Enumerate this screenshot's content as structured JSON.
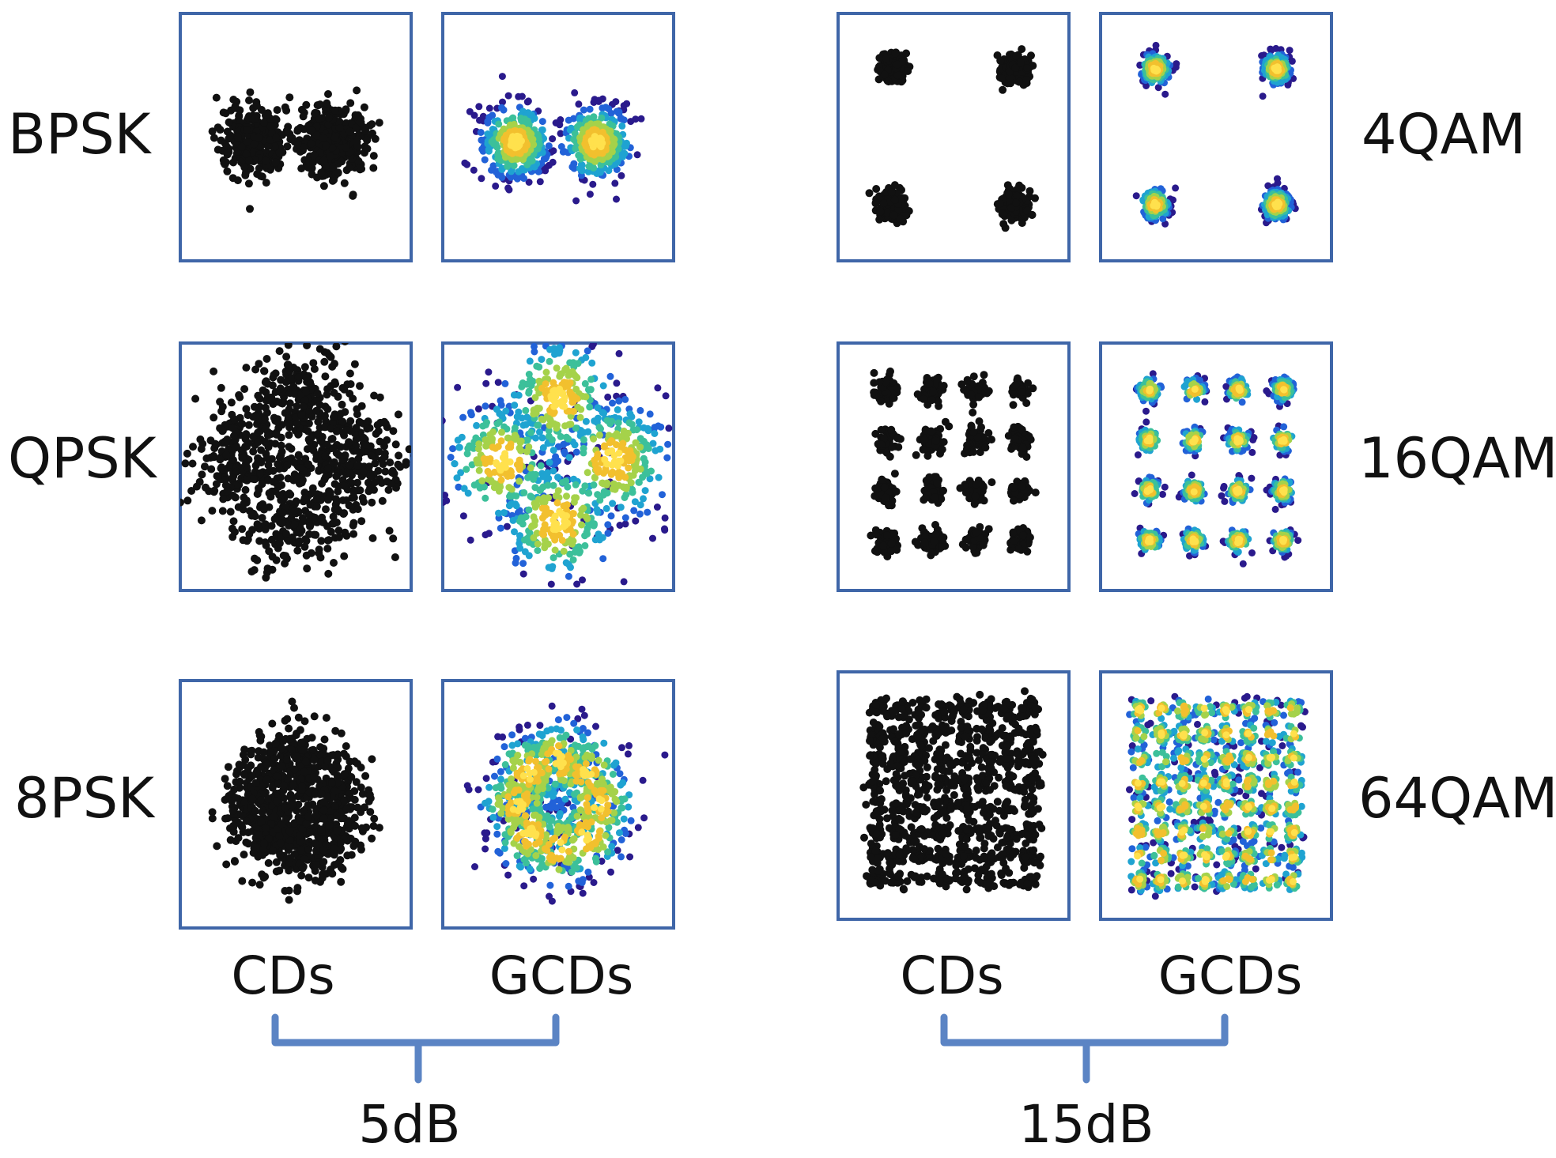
{
  "colors": {
    "frame": "#3f66a8",
    "brace": "#5b84c4",
    "cd_point": "#111111",
    "gcd_colormap": [
      "#2a1a8c",
      "#2262d8",
      "#1fa3d1",
      "#3cc09a",
      "#a5d24a",
      "#f2c02e",
      "#ffe14d"
    ]
  },
  "groups": [
    {
      "snr_label": "5dB",
      "column_labels": [
        "CDs",
        "GCDs"
      ],
      "rows": [
        {
          "modulation": "BPSK",
          "constellation": "bpsk"
        },
        {
          "modulation": "QPSK",
          "constellation": "qpsk"
        },
        {
          "modulation": "8PSK",
          "constellation": "8psk"
        }
      ]
    },
    {
      "snr_label": "15dB",
      "column_labels": [
        "CDs",
        "GCDs"
      ],
      "rows": [
        {
          "modulation": "4QAM",
          "constellation": "4qam"
        },
        {
          "modulation": "16QAM",
          "constellation": "16qam"
        },
        {
          "modulation": "64QAM",
          "constellation": "64qam"
        }
      ]
    }
  ]
}
